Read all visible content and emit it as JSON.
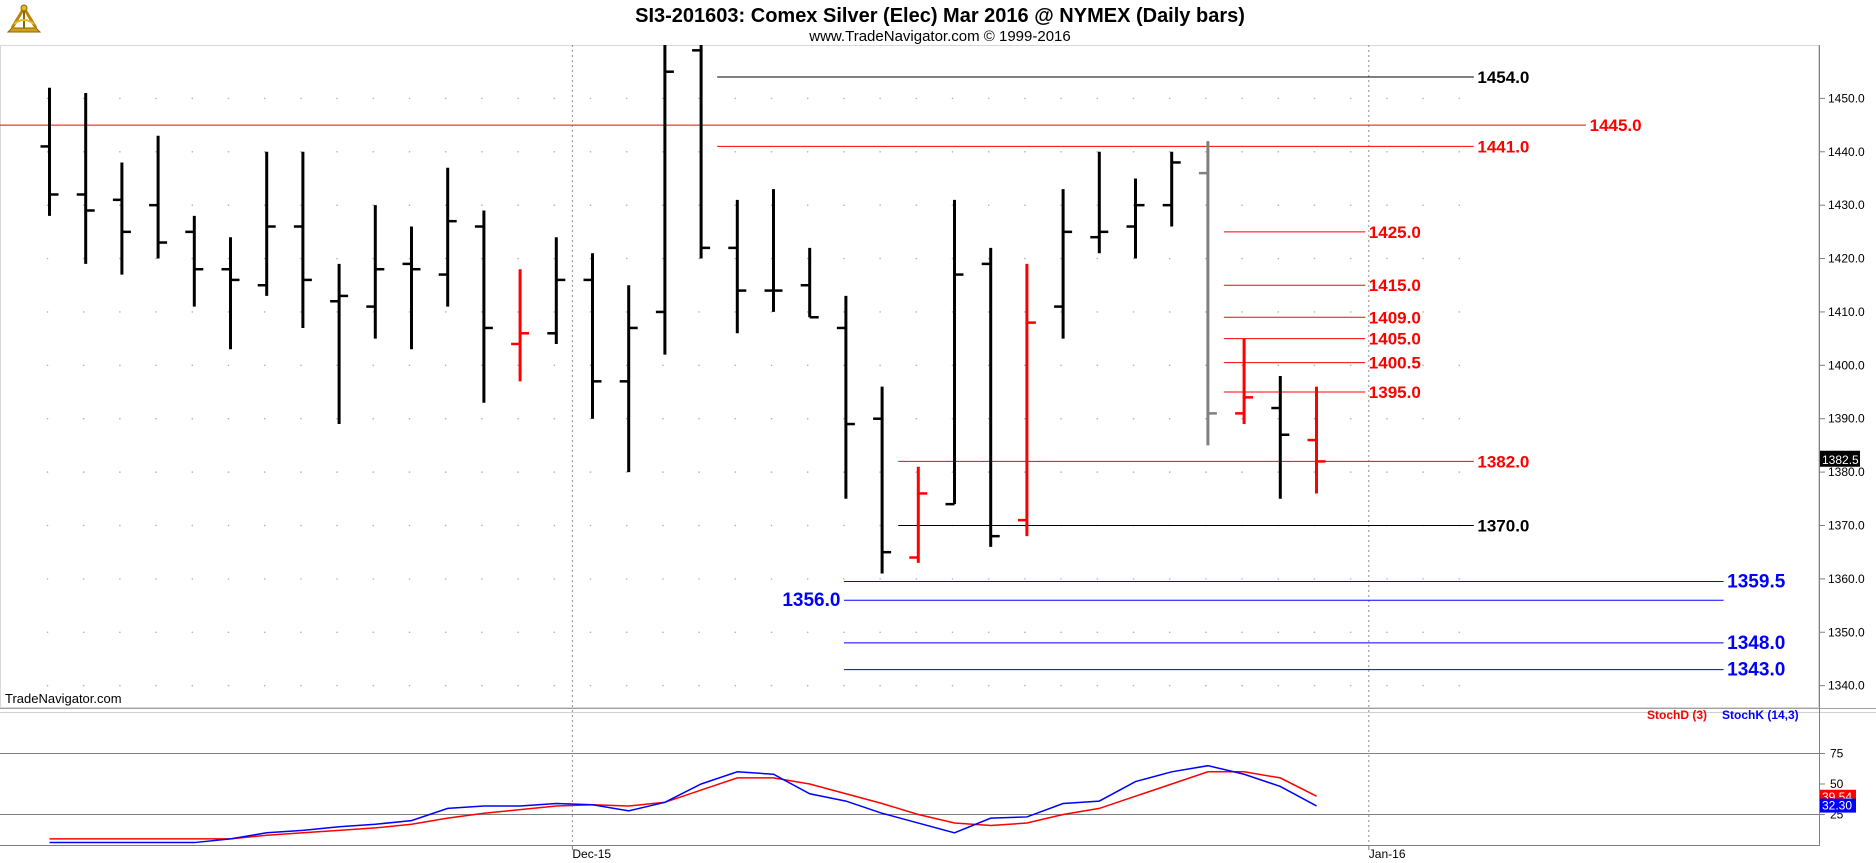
{
  "header": {
    "title": "SI3-201603:  Comex Silver (Elec) Mar 2016 @ NYMEX  (Daily bars)",
    "subtitle": "www.TradeNavigator.com © 1999-2016"
  },
  "watermark": "TradeNavigator.com",
  "logo": "sextant-logo-icon",
  "colors": {
    "up": "#000000",
    "down": "#ff0000",
    "neutral": "#808080",
    "support": "#0000ff",
    "resistance": "#ff0000",
    "stochD": "#ff0000",
    "stochK": "#0000ff",
    "grid": "#c8c8c8"
  },
  "chart_data": [
    {
      "type": "ohlc",
      "ylim": [
        1336,
        1460
      ],
      "yticks": [
        "1340.0",
        "1350.0",
        "1360.0",
        "1370.0",
        "1380.0",
        "1390.0",
        "1400.0",
        "1410.0",
        "1420.0",
        "1430.0",
        "1440.0",
        "1450.0"
      ],
      "xtick_labels": [
        {
          "label": "Dec-15",
          "index": 14.5
        },
        {
          "label": "Jan-16",
          "index": 36.5
        }
      ],
      "last_price": "1382.5",
      "bars": [
        {
          "o": 1441,
          "h": 1452,
          "l": 1428,
          "c": 1432,
          "col": "up"
        },
        {
          "o": 1432,
          "h": 1451,
          "l": 1419,
          "c": 1429,
          "col": "up"
        },
        {
          "o": 1431,
          "h": 1438,
          "l": 1417,
          "c": 1425,
          "col": "up"
        },
        {
          "o": 1430,
          "h": 1443,
          "l": 1420,
          "c": 1423,
          "col": "up"
        },
        {
          "o": 1425,
          "h": 1428,
          "l": 1411,
          "c": 1418,
          "col": "up"
        },
        {
          "o": 1418,
          "h": 1424,
          "l": 1403,
          "c": 1416,
          "col": "up"
        },
        {
          "o": 1415,
          "h": 1440,
          "l": 1413,
          "c": 1426,
          "col": "up"
        },
        {
          "o": 1426,
          "h": 1440,
          "l": 1407,
          "c": 1416,
          "col": "up"
        },
        {
          "o": 1412,
          "h": 1419,
          "l": 1389,
          "c": 1413,
          "col": "up"
        },
        {
          "o": 1411,
          "h": 1430,
          "l": 1405,
          "c": 1418,
          "col": "up"
        },
        {
          "o": 1419,
          "h": 1426,
          "l": 1403,
          "c": 1418,
          "col": "up"
        },
        {
          "o": 1417,
          "h": 1437,
          "l": 1411,
          "c": 1427,
          "col": "up"
        },
        {
          "o": 1426,
          "h": 1429,
          "l": 1393,
          "c": 1407,
          "col": "up"
        },
        {
          "o": 1404,
          "h": 1418,
          "l": 1397,
          "c": 1406,
          "col": "down"
        },
        {
          "o": 1406,
          "h": 1424,
          "l": 1404,
          "c": 1416,
          "col": "up"
        },
        {
          "o": 1416,
          "h": 1421,
          "l": 1390,
          "c": 1397,
          "col": "up"
        },
        {
          "o": 1397,
          "h": 1415,
          "l": 1380,
          "c": 1407,
          "col": "up"
        },
        {
          "o": 1410,
          "h": 1460,
          "l": 1402,
          "c": 1455,
          "col": "up"
        },
        {
          "o": 1459,
          "h": 1460,
          "l": 1420,
          "c": 1422,
          "col": "up"
        },
        {
          "o": 1422,
          "h": 1431,
          "l": 1406,
          "c": 1414,
          "col": "up"
        },
        {
          "o": 1414,
          "h": 1433,
          "l": 1410,
          "c": 1414,
          "col": "up"
        },
        {
          "o": 1415,
          "h": 1422,
          "l": 1409,
          "c": 1409,
          "col": "up"
        },
        {
          "o": 1407,
          "h": 1413,
          "l": 1375,
          "c": 1389,
          "col": "up"
        },
        {
          "o": 1390,
          "h": 1396,
          "l": 1361,
          "c": 1365,
          "col": "up"
        },
        {
          "o": 1364,
          "h": 1381,
          "l": 1363,
          "c": 1376,
          "col": "down"
        },
        {
          "o": 1374,
          "h": 1431,
          "l": 1374,
          "c": 1417,
          "col": "up"
        },
        {
          "o": 1419,
          "h": 1422,
          "l": 1366,
          "c": 1368,
          "col": "up"
        },
        {
          "o": 1371,
          "h": 1419,
          "l": 1368,
          "c": 1408,
          "col": "down"
        },
        {
          "o": 1411,
          "h": 1433,
          "l": 1405,
          "c": 1425,
          "col": "up"
        },
        {
          "o": 1424,
          "h": 1440,
          "l": 1421,
          "c": 1425,
          "col": "up"
        },
        {
          "o": 1426,
          "h": 1435,
          "l": 1420,
          "c": 1430,
          "col": "up"
        },
        {
          "o": 1430,
          "h": 1440,
          "l": 1426,
          "c": 1438,
          "col": "up"
        },
        {
          "o": 1436,
          "h": 1442,
          "l": 1385,
          "c": 1391,
          "col": "neutral"
        },
        {
          "o": 1391,
          "h": 1405,
          "l": 1389,
          "c": 1394,
          "col": "down"
        },
        {
          "o": 1392,
          "h": 1398,
          "l": 1375,
          "c": 1387,
          "col": "up"
        },
        {
          "o": 1386,
          "h": 1396,
          "l": 1376,
          "c": 1382,
          "col": "down"
        }
      ],
      "levels": [
        {
          "value": 1454.0,
          "label": "1454.0",
          "col": "up",
          "from": 18.5,
          "to": 39.4,
          "lx": 39.5,
          "big": false
        },
        {
          "value": 1445.0,
          "label": "1445.0",
          "col": "down",
          "from": -2,
          "to": 42.5,
          "lx": 42.6,
          "big": false
        },
        {
          "value": 1441.0,
          "label": "1441.0",
          "col": "down",
          "from": 18.5,
          "to": 39.4,
          "lx": 39.5,
          "big": false
        },
        {
          "value": 1425.0,
          "label": "1425.0",
          "col": "down",
          "from": 32.5,
          "to": 36.4,
          "lx": 36.5,
          "big": false
        },
        {
          "value": 1415.0,
          "label": "1415.0",
          "col": "down",
          "from": 32.5,
          "to": 36.4,
          "lx": 36.5,
          "big": false
        },
        {
          "value": 1409.0,
          "label": "1409.0",
          "col": "down",
          "from": 32.5,
          "to": 36.4,
          "lx": 36.5,
          "big": false
        },
        {
          "value": 1405.0,
          "label": "1405.0",
          "col": "down",
          "from": 32.5,
          "to": 36.4,
          "lx": 36.5,
          "big": false
        },
        {
          "value": 1400.5,
          "label": "1400.5",
          "col": "down",
          "from": 32.5,
          "to": 36.4,
          "lx": 36.5,
          "big": false
        },
        {
          "value": 1395.0,
          "label": "1395.0",
          "col": "down",
          "from": 32.5,
          "to": 36.4,
          "lx": 36.5,
          "big": false
        },
        {
          "value": 1382.0,
          "label": "1382.0",
          "col": "down",
          "from": 23.5,
          "to": 39.4,
          "lx": 39.5,
          "big": false
        },
        {
          "value": 1370.0,
          "label": "1370.0",
          "col": "up",
          "from": 23.5,
          "to": 39.4,
          "lx": 39.5,
          "big": false
        },
        {
          "value": 1359.5,
          "label": "1359.5",
          "col": "support",
          "from": 22.0,
          "to": 46.3,
          "lx": 46.4,
          "big": true
        },
        {
          "value": 1356.0,
          "label": "1356.0",
          "col": "support",
          "from": 22.0,
          "to": 46.3,
          "lx": 20.3,
          "big": true
        },
        {
          "value": 1348.0,
          "label": "1348.0",
          "col": "support",
          "from": 22.0,
          "to": 46.3,
          "lx": 46.4,
          "big": true
        },
        {
          "value": 1343.0,
          "label": "1343.0",
          "col": "support",
          "from": 22.0,
          "to": 46.3,
          "lx": 46.4,
          "big": true
        }
      ]
    },
    {
      "type": "line",
      "ylim": [
        0,
        100
      ],
      "yticks": [
        "25",
        "50",
        "75"
      ],
      "legend": [
        {
          "name": "StochD (3)",
          "col": "stochD"
        },
        {
          "name": "StochK (14,3)",
          "col": "stochK"
        }
      ],
      "badges": [
        {
          "text": "39.54",
          "col": "stochD",
          "value": 39.54
        },
        {
          "text": "32.30",
          "col": "stochK",
          "value": 32.3
        }
      ],
      "series": [
        {
          "name": "StochD (3)",
          "col": "stochD",
          "x_start": 0,
          "values": [
            5,
            5,
            5,
            5,
            5,
            5,
            8,
            10,
            12,
            14,
            17,
            22,
            26,
            29,
            32,
            33,
            32,
            35,
            45,
            55,
            55,
            50,
            42,
            34,
            25,
            18,
            16,
            18,
            25,
            30,
            40,
            50,
            60,
            60,
            55,
            40
          ]
        },
        {
          "name": "StochK (14,3)",
          "col": "stochK",
          "x_start": 0,
          "values": [
            2,
            2,
            2,
            2,
            2,
            5,
            10,
            12,
            15,
            17,
            20,
            30,
            32,
            32,
            34,
            33,
            28,
            35,
            50,
            60,
            58,
            42,
            36,
            26,
            18,
            10,
            22,
            23,
            34,
            36,
            52,
            60,
            65,
            58,
            48,
            32
          ]
        }
      ]
    }
  ]
}
